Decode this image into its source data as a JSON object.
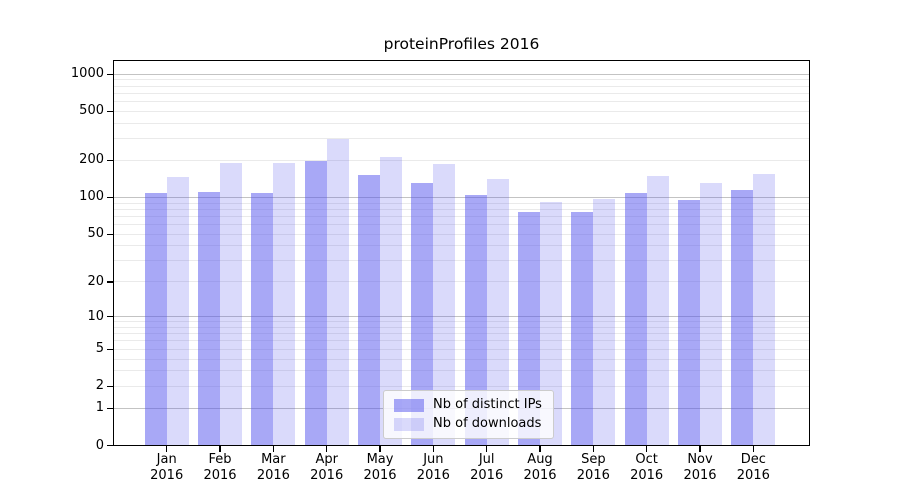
{
  "title": "proteinProfiles 2016",
  "background_color": "#ffffff",
  "chart_data": {
    "type": "bar",
    "title": "proteinProfiles 2016",
    "categories": [
      "Jan",
      "Feb",
      "Mar",
      "Apr",
      "May",
      "Jun",
      "Jul",
      "Aug",
      "Sep",
      "Oct",
      "Nov",
      "Dec"
    ],
    "x_tick_second_line": "2016",
    "series": [
      {
        "name": "Nb of distinct IPs",
        "color": "rgba(82,82,238,0.5)",
        "values": [
          108,
          110,
          108,
          199,
          152,
          130,
          105,
          76,
          76,
          108,
          96,
          115
        ]
      },
      {
        "name": "Nb of downloads",
        "color": "rgba(82,82,238,0.21)",
        "values": [
          146,
          191,
          191,
          297,
          213,
          187,
          141,
          92,
          98,
          150,
          132,
          155
        ]
      }
    ],
    "xlabel": "",
    "ylabel": "",
    "yscale": "log1p",
    "ylim": [
      0,
      1300
    ],
    "yticks": [
      0,
      1,
      2,
      5,
      10,
      20,
      50,
      100,
      200,
      500,
      1000
    ],
    "grid": {
      "on": true,
      "major_ticks": [
        1,
        10,
        100,
        1000
      ],
      "major_color": "#c3c3c3",
      "minor_color": "#eaeaea"
    },
    "legend": {
      "location": "lower center",
      "face_color": "rgba(255,255,255,0.8)",
      "border_color": "#cccccc"
    },
    "axis_color": "#000000",
    "text_color": "#000000"
  }
}
